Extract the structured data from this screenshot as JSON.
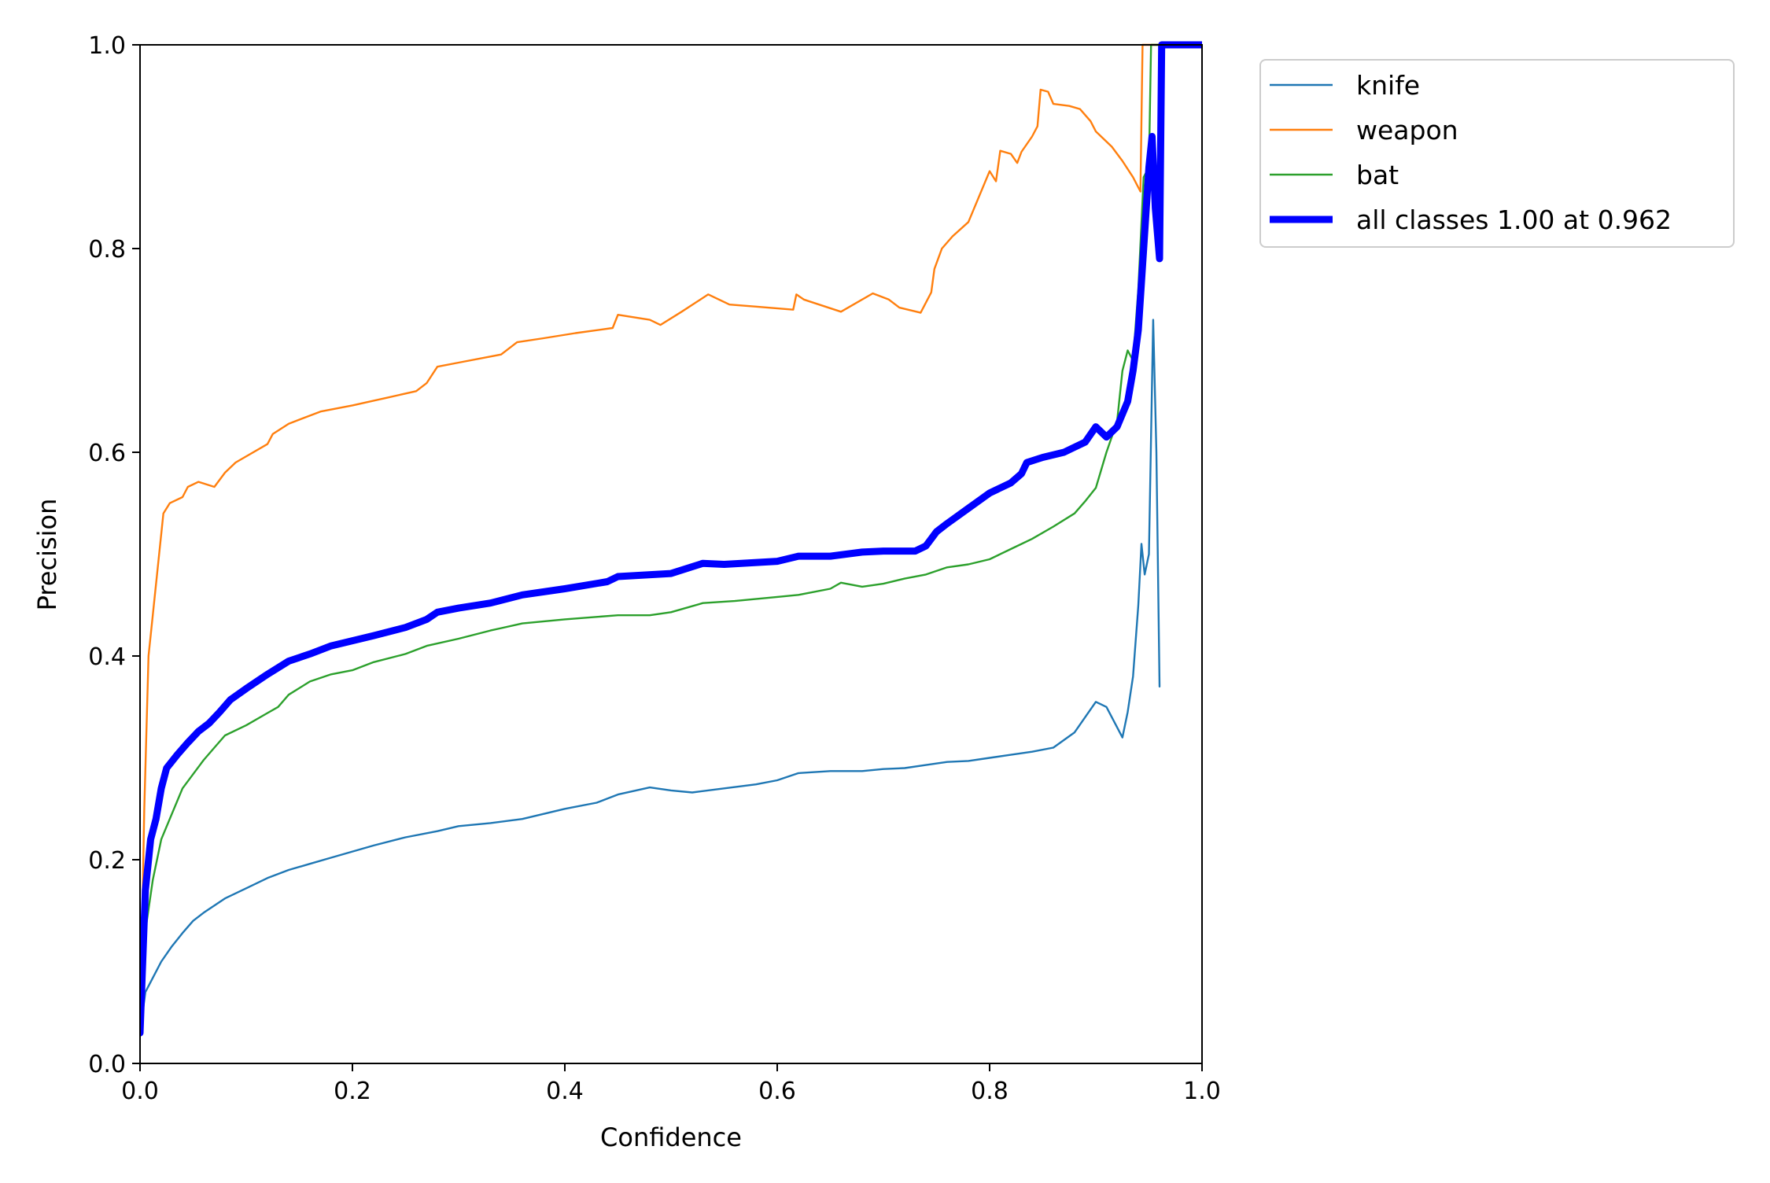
{
  "chart_data": {
    "type": "line",
    "title": "",
    "xlabel": "Confidence",
    "ylabel": "Precision",
    "xlim": [
      0.0,
      1.0
    ],
    "ylim": [
      0.0,
      1.0
    ],
    "xticks": [
      "0.0",
      "0.2",
      "0.4",
      "0.6",
      "0.8",
      "1.0"
    ],
    "yticks": [
      "0.0",
      "0.2",
      "0.4",
      "0.6",
      "0.8",
      "1.0"
    ],
    "grid": false,
    "legend_position": "outside-top-right",
    "series": [
      {
        "name": "knife",
        "color": "#1f77b4",
        "thick": false,
        "points": [
          [
            0.0,
            0.03
          ],
          [
            0.005,
            0.07
          ],
          [
            0.01,
            0.08
          ],
          [
            0.02,
            0.1
          ],
          [
            0.03,
            0.115
          ],
          [
            0.04,
            0.128
          ],
          [
            0.05,
            0.14
          ],
          [
            0.06,
            0.148
          ],
          [
            0.07,
            0.155
          ],
          [
            0.08,
            0.162
          ],
          [
            0.1,
            0.172
          ],
          [
            0.12,
            0.182
          ],
          [
            0.14,
            0.19
          ],
          [
            0.16,
            0.196
          ],
          [
            0.18,
            0.202
          ],
          [
            0.2,
            0.208
          ],
          [
            0.22,
            0.214
          ],
          [
            0.25,
            0.222
          ],
          [
            0.28,
            0.228
          ],
          [
            0.3,
            0.233
          ],
          [
            0.33,
            0.236
          ],
          [
            0.36,
            0.24
          ],
          [
            0.4,
            0.25
          ],
          [
            0.43,
            0.256
          ],
          [
            0.45,
            0.264
          ],
          [
            0.48,
            0.271
          ],
          [
            0.5,
            0.268
          ],
          [
            0.52,
            0.266
          ],
          [
            0.55,
            0.27
          ],
          [
            0.58,
            0.274
          ],
          [
            0.6,
            0.278
          ],
          [
            0.62,
            0.285
          ],
          [
            0.65,
            0.287
          ],
          [
            0.68,
            0.287
          ],
          [
            0.7,
            0.289
          ],
          [
            0.72,
            0.29
          ],
          [
            0.74,
            0.293
          ],
          [
            0.76,
            0.296
          ],
          [
            0.78,
            0.297
          ],
          [
            0.8,
            0.3
          ],
          [
            0.82,
            0.303
          ],
          [
            0.84,
            0.306
          ],
          [
            0.86,
            0.31
          ],
          [
            0.88,
            0.325
          ],
          [
            0.89,
            0.34
          ],
          [
            0.9,
            0.355
          ],
          [
            0.91,
            0.35
          ],
          [
            0.92,
            0.33
          ],
          [
            0.925,
            0.32
          ],
          [
            0.93,
            0.345
          ],
          [
            0.935,
            0.38
          ],
          [
            0.94,
            0.45
          ],
          [
            0.943,
            0.51
          ],
          [
            0.946,
            0.48
          ],
          [
            0.95,
            0.5
          ],
          [
            0.954,
            0.73
          ],
          [
            0.957,
            0.6
          ],
          [
            0.96,
            0.37
          ]
        ]
      },
      {
        "name": "weapon",
        "color": "#ff7f0e",
        "thick": false,
        "points": [
          [
            0.0,
            0.03
          ],
          [
            0.004,
            0.25
          ],
          [
            0.008,
            0.4
          ],
          [
            0.012,
            0.44
          ],
          [
            0.018,
            0.5
          ],
          [
            0.022,
            0.54
          ],
          [
            0.028,
            0.55
          ],
          [
            0.04,
            0.556
          ],
          [
            0.045,
            0.566
          ],
          [
            0.055,
            0.571
          ],
          [
            0.07,
            0.566
          ],
          [
            0.08,
            0.58
          ],
          [
            0.09,
            0.59
          ],
          [
            0.12,
            0.608
          ],
          [
            0.125,
            0.618
          ],
          [
            0.14,
            0.628
          ],
          [
            0.17,
            0.64
          ],
          [
            0.2,
            0.646
          ],
          [
            0.23,
            0.653
          ],
          [
            0.26,
            0.66
          ],
          [
            0.27,
            0.668
          ],
          [
            0.28,
            0.684
          ],
          [
            0.3,
            0.688
          ],
          [
            0.34,
            0.696
          ],
          [
            0.355,
            0.708
          ],
          [
            0.38,
            0.712
          ],
          [
            0.41,
            0.717
          ],
          [
            0.445,
            0.722
          ],
          [
            0.45,
            0.735
          ],
          [
            0.48,
            0.73
          ],
          [
            0.49,
            0.725
          ],
          [
            0.51,
            0.738
          ],
          [
            0.535,
            0.755
          ],
          [
            0.555,
            0.745
          ],
          [
            0.58,
            0.743
          ],
          [
            0.615,
            0.74
          ],
          [
            0.618,
            0.755
          ],
          [
            0.625,
            0.75
          ],
          [
            0.66,
            0.738
          ],
          [
            0.69,
            0.756
          ],
          [
            0.705,
            0.75
          ],
          [
            0.715,
            0.742
          ],
          [
            0.735,
            0.737
          ],
          [
            0.745,
            0.757
          ],
          [
            0.748,
            0.78
          ],
          [
            0.755,
            0.8
          ],
          [
            0.765,
            0.812
          ],
          [
            0.78,
            0.826
          ],
          [
            0.8,
            0.876
          ],
          [
            0.806,
            0.866
          ],
          [
            0.81,
            0.896
          ],
          [
            0.82,
            0.893
          ],
          [
            0.826,
            0.884
          ],
          [
            0.83,
            0.895
          ],
          [
            0.84,
            0.91
          ],
          [
            0.845,
            0.92
          ],
          [
            0.848,
            0.956
          ],
          [
            0.855,
            0.954
          ],
          [
            0.86,
            0.942
          ],
          [
            0.875,
            0.94
          ],
          [
            0.885,
            0.937
          ],
          [
            0.895,
            0.925
          ],
          [
            0.9,
            0.915
          ],
          [
            0.915,
            0.9
          ],
          [
            0.925,
            0.886
          ],
          [
            0.935,
            0.87
          ],
          [
            0.942,
            0.856
          ],
          [
            0.944,
            1.0
          ],
          [
            1.0,
            1.0
          ]
        ]
      },
      {
        "name": "bat",
        "color": "#2ca02c",
        "thick": false,
        "points": [
          [
            0.0,
            0.1
          ],
          [
            0.005,
            0.13
          ],
          [
            0.012,
            0.18
          ],
          [
            0.02,
            0.22
          ],
          [
            0.03,
            0.245
          ],
          [
            0.04,
            0.27
          ],
          [
            0.05,
            0.284
          ],
          [
            0.06,
            0.298
          ],
          [
            0.07,
            0.31
          ],
          [
            0.08,
            0.322
          ],
          [
            0.1,
            0.332
          ],
          [
            0.12,
            0.344
          ],
          [
            0.13,
            0.35
          ],
          [
            0.14,
            0.362
          ],
          [
            0.16,
            0.375
          ],
          [
            0.18,
            0.382
          ],
          [
            0.2,
            0.386
          ],
          [
            0.22,
            0.394
          ],
          [
            0.25,
            0.402
          ],
          [
            0.27,
            0.41
          ],
          [
            0.3,
            0.417
          ],
          [
            0.33,
            0.425
          ],
          [
            0.36,
            0.432
          ],
          [
            0.4,
            0.436
          ],
          [
            0.45,
            0.44
          ],
          [
            0.48,
            0.44
          ],
          [
            0.5,
            0.443
          ],
          [
            0.53,
            0.452
          ],
          [
            0.56,
            0.454
          ],
          [
            0.6,
            0.458
          ],
          [
            0.62,
            0.46
          ],
          [
            0.65,
            0.466
          ],
          [
            0.66,
            0.472
          ],
          [
            0.68,
            0.468
          ],
          [
            0.7,
            0.471
          ],
          [
            0.72,
            0.476
          ],
          [
            0.74,
            0.48
          ],
          [
            0.76,
            0.487
          ],
          [
            0.78,
            0.49
          ],
          [
            0.8,
            0.495
          ],
          [
            0.82,
            0.505
          ],
          [
            0.84,
            0.515
          ],
          [
            0.86,
            0.527
          ],
          [
            0.88,
            0.54
          ],
          [
            0.89,
            0.552
          ],
          [
            0.9,
            0.565
          ],
          [
            0.91,
            0.6
          ],
          [
            0.92,
            0.63
          ],
          [
            0.925,
            0.68
          ],
          [
            0.93,
            0.7
          ],
          [
            0.935,
            0.69
          ],
          [
            0.94,
            0.76
          ],
          [
            0.945,
            0.87
          ],
          [
            0.95,
            0.88
          ],
          [
            0.952,
            1.0
          ],
          [
            1.0,
            1.0
          ]
        ]
      },
      {
        "name": "all classes 1.00 at 0.962",
        "color": "#0000ff",
        "thick": true,
        "points": [
          [
            0.0,
            0.03
          ],
          [
            0.005,
            0.17
          ],
          [
            0.01,
            0.22
          ],
          [
            0.015,
            0.24
          ],
          [
            0.02,
            0.27
          ],
          [
            0.025,
            0.29
          ],
          [
            0.035,
            0.303
          ],
          [
            0.045,
            0.315
          ],
          [
            0.055,
            0.326
          ],
          [
            0.065,
            0.334
          ],
          [
            0.075,
            0.345
          ],
          [
            0.085,
            0.357
          ],
          [
            0.1,
            0.368
          ],
          [
            0.12,
            0.382
          ],
          [
            0.14,
            0.395
          ],
          [
            0.16,
            0.402
          ],
          [
            0.18,
            0.41
          ],
          [
            0.2,
            0.415
          ],
          [
            0.22,
            0.42
          ],
          [
            0.25,
            0.428
          ],
          [
            0.27,
            0.436
          ],
          [
            0.28,
            0.443
          ],
          [
            0.3,
            0.447
          ],
          [
            0.33,
            0.452
          ],
          [
            0.36,
            0.46
          ],
          [
            0.4,
            0.466
          ],
          [
            0.44,
            0.473
          ],
          [
            0.45,
            0.478
          ],
          [
            0.5,
            0.481
          ],
          [
            0.53,
            0.491
          ],
          [
            0.55,
            0.49
          ],
          [
            0.6,
            0.493
          ],
          [
            0.62,
            0.498
          ],
          [
            0.65,
            0.498
          ],
          [
            0.68,
            0.502
          ],
          [
            0.7,
            0.503
          ],
          [
            0.73,
            0.503
          ],
          [
            0.74,
            0.508
          ],
          [
            0.75,
            0.522
          ],
          [
            0.76,
            0.53
          ],
          [
            0.78,
            0.545
          ],
          [
            0.8,
            0.56
          ],
          [
            0.82,
            0.57
          ],
          [
            0.83,
            0.579
          ],
          [
            0.835,
            0.59
          ],
          [
            0.85,
            0.595
          ],
          [
            0.87,
            0.6
          ],
          [
            0.88,
            0.605
          ],
          [
            0.89,
            0.61
          ],
          [
            0.9,
            0.625
          ],
          [
            0.91,
            0.615
          ],
          [
            0.92,
            0.625
          ],
          [
            0.93,
            0.65
          ],
          [
            0.935,
            0.68
          ],
          [
            0.94,
            0.72
          ],
          [
            0.945,
            0.8
          ],
          [
            0.95,
            0.88
          ],
          [
            0.953,
            0.91
          ],
          [
            0.956,
            0.84
          ],
          [
            0.96,
            0.79
          ],
          [
            0.962,
            1.0
          ],
          [
            1.0,
            1.0
          ]
        ]
      }
    ]
  }
}
